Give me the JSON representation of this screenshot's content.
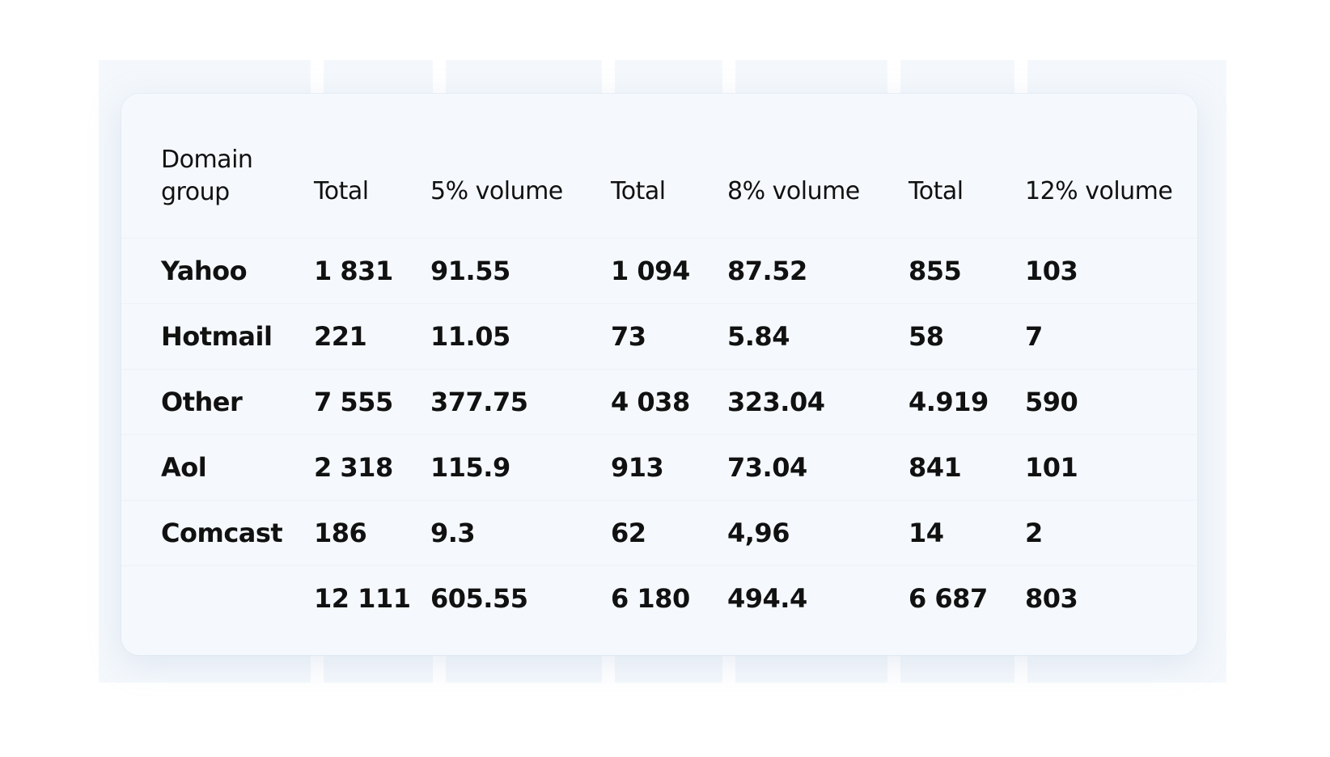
{
  "table": {
    "headers": [
      "Domain group",
      "Total",
      "5% volume",
      "Total",
      "8% volume",
      "Total",
      "12% volume"
    ],
    "rows": [
      [
        "Yahoo",
        "1 831",
        "91.55",
        "1 094",
        "87.52",
        "855",
        "103"
      ],
      [
        "Hotmail",
        "221",
        "11.05",
        "73",
        "5.84",
        "58",
        "7"
      ],
      [
        "Other",
        "7 555",
        "377.75",
        "4 038",
        "323.04",
        "4.919",
        "590"
      ],
      [
        "Aol",
        "2 318",
        "115.9",
        "913",
        "73.04",
        "841",
        "101"
      ],
      [
        "Comcast",
        "186",
        "9.3",
        "62",
        "4,96",
        "14",
        "2"
      ],
      [
        "",
        "12 111",
        "605.55",
        "6 180",
        "494.4",
        "6 687",
        "803"
      ]
    ]
  },
  "colors": {
    "card_background": "#f5f9fd",
    "text": "#111111"
  }
}
